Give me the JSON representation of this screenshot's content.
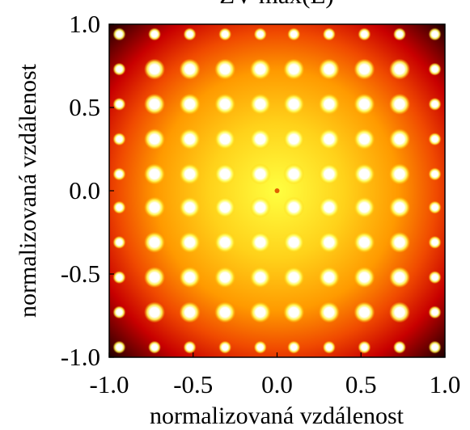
{
  "chart_data": {
    "type": "heatmap",
    "title": "ZV max(E)",
    "xlabel": "normalizovaná vzdálenost",
    "ylabel": "normalizovaná vzdálenost",
    "xlim": [
      -1.0,
      1.0
    ],
    "ylim": [
      -1.0,
      1.0
    ],
    "xticks": [
      "-1.0",
      "-0.5",
      "0.0",
      "0.5",
      "1.0"
    ],
    "yticks": [
      "-1.0",
      "-0.5",
      "0.0",
      "0.5",
      "1.0"
    ],
    "tick_values": [
      -1.0,
      -0.5,
      0.0,
      0.5,
      1.0
    ],
    "grid": false,
    "colormap": "hot",
    "colors": {
      "center": "#ffff40",
      "mid": "#ff9a00",
      "outer": "#d40000",
      "edge": "#1a0000",
      "hotspot": "#ffffff"
    },
    "hotspot_grid": {
      "positions": [
        -0.94,
        -0.73,
        -0.52,
        -0.31,
        -0.1,
        0.1,
        0.31,
        0.52,
        0.73,
        0.94
      ],
      "count_per_axis": 10
    },
    "center_minimum": {
      "x": 0.0,
      "y": 0.0
    }
  }
}
